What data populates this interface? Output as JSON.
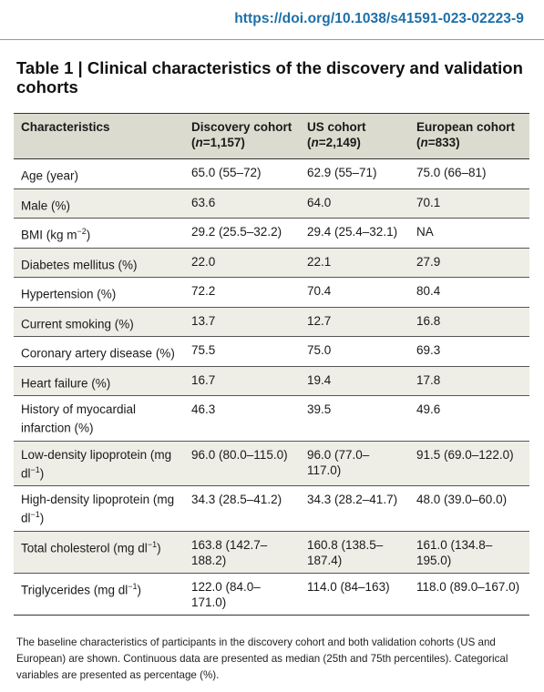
{
  "doi": "https://doi.org/10.1038/s41591-023-02223-9",
  "title": "Table 1 | Clinical characteristics of the discovery and validation cohorts",
  "headers": [
    {
      "pre": "Characteristics",
      "n": "",
      "post": ""
    },
    {
      "pre": "Discovery cohort (",
      "n": "n",
      "post": "=1,157)"
    },
    {
      "pre": "US cohort (",
      "n": "n",
      "post": "=2,149)"
    },
    {
      "pre": "European cohort (",
      "n": "n",
      "post": "=833)"
    }
  ],
  "rows": [
    {
      "label": "Age (year)",
      "label_sup": "",
      "label_tail": "",
      "discovery": "65.0 (55–72)",
      "us": "62.9 (55–71)",
      "european": "75.0 (66–81)"
    },
    {
      "label": "Male (%)",
      "label_sup": "",
      "label_tail": "",
      "discovery": "63.6",
      "us": "64.0",
      "european": "70.1"
    },
    {
      "label": "BMI (kg m",
      "label_sup": "−2",
      "label_tail": ")",
      "discovery": "29.2 (25.5–32.2)",
      "us": "29.4 (25.4–32.1)",
      "european": "NA"
    },
    {
      "label": "Diabetes mellitus (%)",
      "label_sup": "",
      "label_tail": "",
      "discovery": "22.0",
      "us": "22.1",
      "european": "27.9"
    },
    {
      "label": "Hypertension (%)",
      "label_sup": "",
      "label_tail": "",
      "discovery": "72.2",
      "us": "70.4",
      "european": "80.4"
    },
    {
      "label": "Current smoking (%)",
      "label_sup": "",
      "label_tail": "",
      "discovery": "13.7",
      "us": "12.7",
      "european": "16.8"
    },
    {
      "label": "Coronary artery disease (%)",
      "label_sup": "",
      "label_tail": "",
      "discovery": "75.5",
      "us": "75.0",
      "european": "69.3"
    },
    {
      "label": "Heart failure (%)",
      "label_sup": "",
      "label_tail": "",
      "discovery": "16.7",
      "us": "19.4",
      "european": "17.8"
    },
    {
      "label": "History of myocardial infarction (%)",
      "label_sup": "",
      "label_tail": "",
      "discovery": "46.3",
      "us": "39.5",
      "european": "49.6"
    },
    {
      "label": "Low-density lipoprotein (mg dl",
      "label_sup": "−1",
      "label_tail": ")",
      "discovery": "96.0 (80.0–115.0)",
      "us": "96.0 (77.0–117.0)",
      "european": "91.5 (69.0–122.0)"
    },
    {
      "label": "High-density lipoprotein (mg dl",
      "label_sup": "−1",
      "label_tail": ")",
      "discovery": "34.3 (28.5–41.2)",
      "us": "34.3 (28.2–41.7)",
      "european": "48.0 (39.0–60.0)"
    },
    {
      "label": "Total cholesterol (mg dl",
      "label_sup": "−1",
      "label_tail": ")",
      "discovery": "163.8 (142.7–188.2)",
      "us": "160.8 (138.5–187.4)",
      "european": "161.0 (134.8–195.0)"
    },
    {
      "label": "Triglycerides (mg dl",
      "label_sup": "−1",
      "label_tail": ")",
      "discovery": "122.0 (84.0–171.0)",
      "us": "114.0 (84–163)",
      "european": "118.0 (89.0–167.0)"
    }
  ],
  "footnote": "The baseline characteristics of participants in the discovery cohort and both validation cohorts (US and European) are shown. Continuous data are presented as median (25th and 75th percentiles). Categorical variables are presented as percentage (%)."
}
